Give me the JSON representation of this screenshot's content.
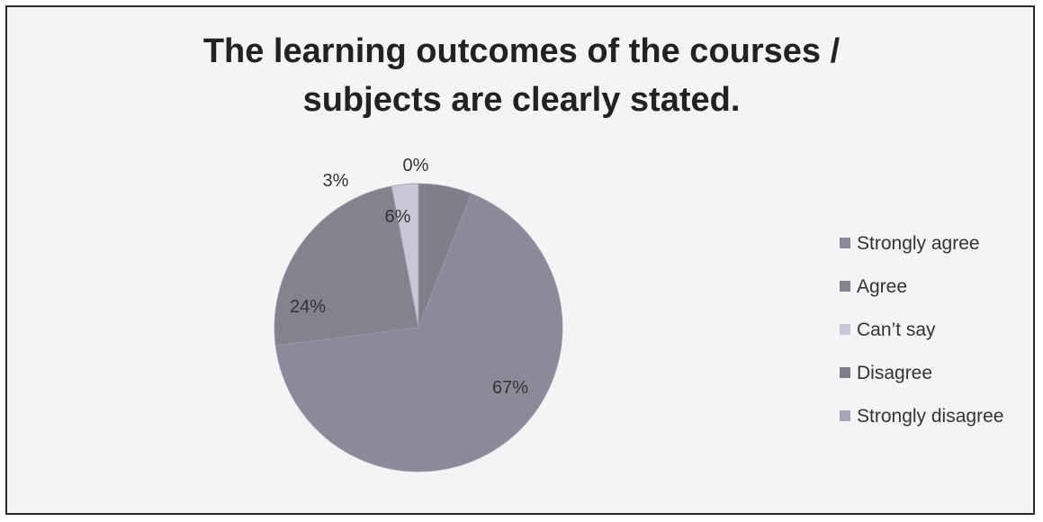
{
  "chart_data": {
    "type": "pie",
    "title_lines": [
      "The learning outcomes of the courses /",
      "subjects are clearly stated."
    ],
    "slices": [
      {
        "name": "Strongly agree",
        "value": 67,
        "label": "67%",
        "color": "#8a8a98"
      },
      {
        "name": "Agree",
        "value": 24,
        "label": "24%",
        "color": "#83838f"
      },
      {
        "name": "Can’t say",
        "value": 3,
        "label": "3%",
        "color": "#c7c7d6"
      },
      {
        "name": "Disagree",
        "value": 6,
        "label": "6%",
        "color": "#7f7f8c"
      },
      {
        "name": "Strongly disagree",
        "value": 0,
        "label": "0%",
        "color": "#a6a6b8"
      }
    ],
    "legend_position": "right"
  }
}
